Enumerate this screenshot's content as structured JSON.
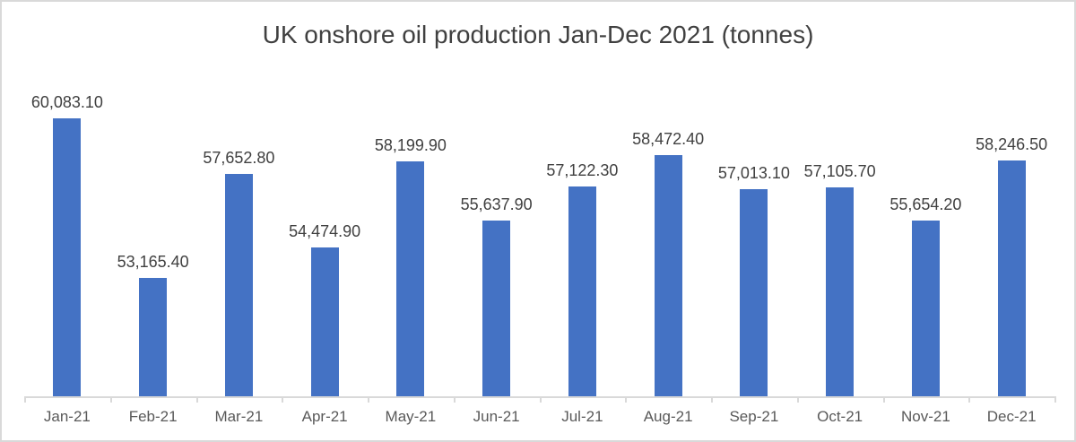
{
  "chart_data": {
    "type": "bar",
    "title": "UK onshore oil production Jan-Dec 2021 (tonnes)",
    "categories": [
      "Jan-21",
      "Feb-21",
      "Mar-21",
      "Apr-21",
      "May-21",
      "Jun-21",
      "Jul-21",
      "Aug-21",
      "Sep-21",
      "Oct-21",
      "Nov-21",
      "Dec-21"
    ],
    "values": [
      60083.1,
      53165.4,
      57652.8,
      54474.9,
      58199.9,
      55637.9,
      57122.3,
      58472.4,
      57013.1,
      57105.7,
      55654.2,
      58246.5
    ],
    "value_labels": [
      "60,083.10",
      "53,165.40",
      "57,652.80",
      "54,474.90",
      "58,199.90",
      "55,637.90",
      "57,122.30",
      "58,472.40",
      "57,013.10",
      "57,105.70",
      "55,654.20",
      "58,246.50"
    ],
    "xlabel": "",
    "ylabel": "",
    "ylim": [
      48000,
      62000
    ],
    "grid": false,
    "legend": "none",
    "data_labels": true,
    "y_axis_visible": false
  },
  "colors": {
    "bar_fill": "#4472C4",
    "title_text": "#404040",
    "data_label_text": "#404040",
    "axis_label_text": "#595959",
    "axis_line": "#D9D9D9",
    "frame_border": "#D9D9D9",
    "background": "#FFFFFF"
  }
}
